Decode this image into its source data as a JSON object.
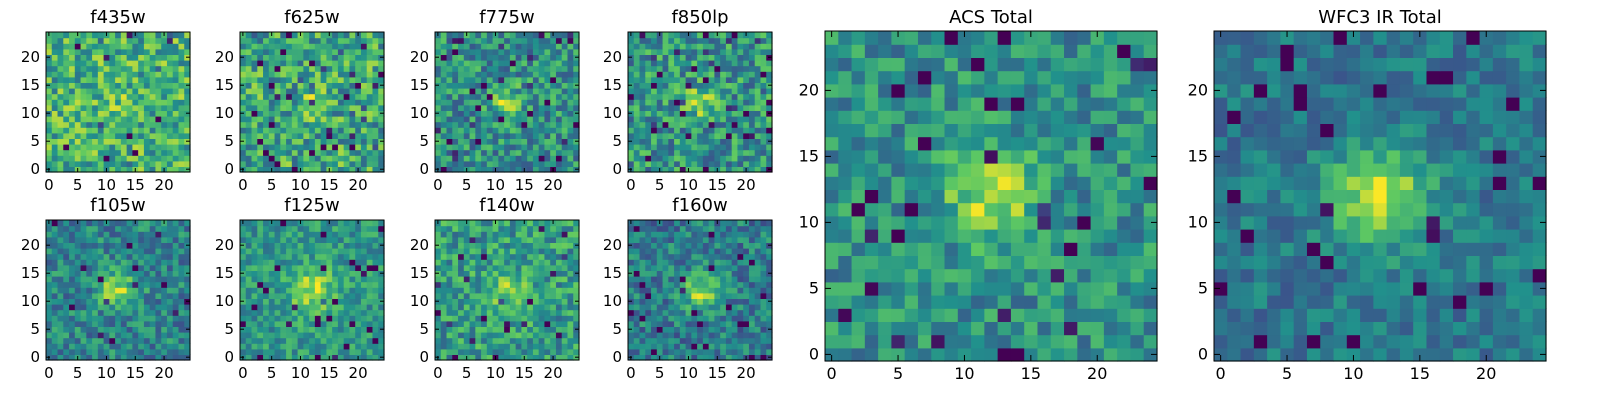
{
  "figure": {
    "colormap": "viridis",
    "colors": [
      "#440154",
      "#3b528b",
      "#21918c",
      "#5ec962",
      "#fde725"
    ]
  },
  "chart_data": [
    {
      "type": "heatmap",
      "title": "f435w",
      "xlim": [
        0,
        24
      ],
      "ylim": [
        0,
        24
      ],
      "xticks": [
        "0",
        "5",
        "10",
        "15",
        "20"
      ],
      "yticks": [
        "0",
        "5",
        "10",
        "15",
        "20"
      ],
      "image": {
        "seed": 11,
        "sigma": 1.6,
        "amplitude": 0.1,
        "noise": 0.26,
        "baseline": 0.64,
        "low_frac": 0.03
      }
    },
    {
      "type": "heatmap",
      "title": "f625w",
      "xlim": [
        0,
        24
      ],
      "ylim": [
        0,
        24
      ],
      "xticks": [
        "0",
        "5",
        "10",
        "15",
        "20"
      ],
      "yticks": [
        "0",
        "5",
        "10",
        "15",
        "20"
      ],
      "image": {
        "seed": 23,
        "sigma": 1.8,
        "amplitude": 0.15,
        "noise": 0.27,
        "baseline": 0.6,
        "low_frac": 0.05
      }
    },
    {
      "type": "heatmap",
      "title": "f775w",
      "xlim": [
        0,
        24
      ],
      "ylim": [
        0,
        24
      ],
      "xticks": [
        "0",
        "5",
        "10",
        "15",
        "20"
      ],
      "yticks": [
        "0",
        "5",
        "10",
        "15",
        "20"
      ],
      "image": {
        "seed": 37,
        "sigma": 1.9,
        "amplitude": 0.35,
        "noise": 0.24,
        "baseline": 0.5,
        "low_frac": 0.05
      }
    },
    {
      "type": "heatmap",
      "title": "f850lp",
      "xlim": [
        0,
        24
      ],
      "ylim": [
        0,
        24
      ],
      "xticks": [
        "0",
        "5",
        "10",
        "15",
        "20"
      ],
      "yticks": [
        "0",
        "5",
        "10",
        "15",
        "20"
      ],
      "image": {
        "seed": 41,
        "sigma": 1.9,
        "amplitude": 0.3,
        "noise": 0.25,
        "baseline": 0.52,
        "low_frac": 0.07
      }
    },
    {
      "type": "heatmap",
      "title": "f105w",
      "xlim": [
        0,
        24
      ],
      "ylim": [
        0,
        24
      ],
      "xticks": [
        "0",
        "5",
        "10",
        "15",
        "20"
      ],
      "yticks": [
        "0",
        "5",
        "10",
        "15",
        "20"
      ],
      "image": {
        "seed": 53,
        "sigma": 2.3,
        "amplitude": 0.4,
        "noise": 0.2,
        "baseline": 0.45,
        "low_frac": 0.03
      }
    },
    {
      "type": "heatmap",
      "title": "f125w",
      "xlim": [
        0,
        24
      ],
      "ylim": [
        0,
        24
      ],
      "xticks": [
        "0",
        "5",
        "10",
        "15",
        "20"
      ],
      "yticks": [
        "0",
        "5",
        "10",
        "15",
        "20"
      ],
      "image": {
        "seed": 67,
        "sigma": 2.8,
        "amplitude": 0.35,
        "noise": 0.17,
        "baseline": 0.53,
        "low_frac": 0.03
      }
    },
    {
      "type": "heatmap",
      "title": "f140w",
      "xlim": [
        0,
        24
      ],
      "ylim": [
        0,
        24
      ],
      "xticks": [
        "0",
        "5",
        "10",
        "15",
        "20"
      ],
      "yticks": [
        "0",
        "5",
        "10",
        "15",
        "20"
      ],
      "image": {
        "seed": 79,
        "sigma": 2.5,
        "amplitude": 0.25,
        "noise": 0.22,
        "baseline": 0.55,
        "low_frac": 0.04
      }
    },
    {
      "type": "heatmap",
      "title": "f160w",
      "xlim": [
        0,
        24
      ],
      "ylim": [
        0,
        24
      ],
      "xticks": [
        "0",
        "5",
        "10",
        "15",
        "20"
      ],
      "yticks": [
        "0",
        "5",
        "10",
        "15",
        "20"
      ],
      "image": {
        "seed": 83,
        "sigma": 2.4,
        "amplitude": 0.4,
        "noise": 0.2,
        "baseline": 0.42,
        "low_frac": 0.04
      }
    },
    {
      "type": "heatmap",
      "title": "ACS Total",
      "xlim": [
        0,
        24
      ],
      "ylim": [
        0,
        24
      ],
      "xticks": [
        "0",
        "5",
        "10",
        "15",
        "20"
      ],
      "yticks": [
        "0",
        "5",
        "10",
        "15",
        "20"
      ],
      "image": {
        "seed": 97,
        "sigma": 2.3,
        "amplitude": 0.4,
        "noise": 0.19,
        "baseline": 0.5,
        "low_frac": 0.05
      }
    },
    {
      "type": "heatmap",
      "title": "WFC3 IR Total",
      "xlim": [
        0,
        24
      ],
      "ylim": [
        0,
        24
      ],
      "xticks": [
        "0",
        "5",
        "10",
        "15",
        "20"
      ],
      "yticks": [
        "0",
        "5",
        "10",
        "15",
        "20"
      ],
      "image": {
        "seed": 109,
        "sigma": 2.6,
        "amplitude": 0.5,
        "noise": 0.14,
        "baseline": 0.4,
        "low_frac": 0.04
      }
    }
  ]
}
